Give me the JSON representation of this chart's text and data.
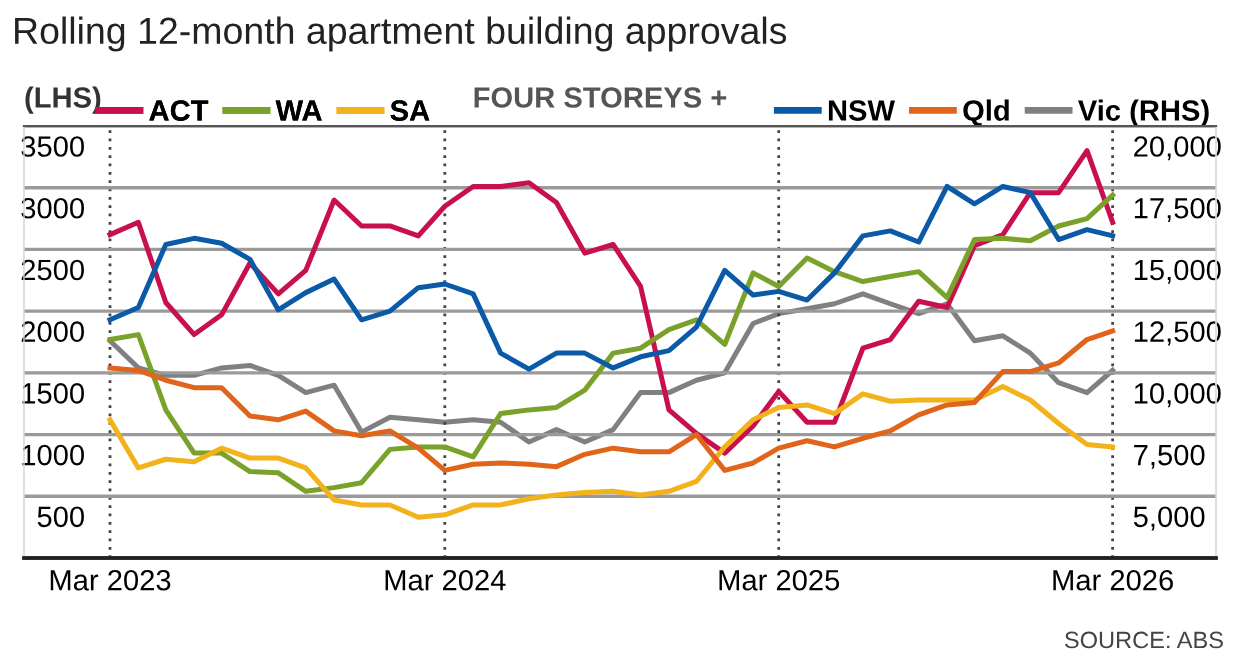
{
  "chart_data": {
    "type": "line",
    "title": "Rolling 12-month apartment building approvals",
    "subtitle": "FOUR STOREYS +",
    "ylabel": "(LHS)",
    "x": [
      "2023-03",
      "2023-04",
      "2023-05",
      "2023-06",
      "2023-07",
      "2023-08",
      "2023-09",
      "2023-10",
      "2023-11",
      "2023-12",
      "2024-01",
      "2024-02",
      "2024-03",
      "2024-04",
      "2024-05",
      "2024-06",
      "2024-07",
      "2024-08",
      "2024-09",
      "2024-10",
      "2024-11",
      "2024-12",
      "2025-01",
      "2025-02",
      "2025-03",
      "2025-04",
      "2025-05",
      "2025-06",
      "2025-07",
      "2025-08",
      "2025-09",
      "2025-10",
      "2025-11",
      "2025-12",
      "2026-01",
      "2026-02",
      "2026-03"
    ],
    "series": [
      {
        "name": "ACT",
        "color": "#c8104e",
        "values": [
          2620,
          2720,
          2070,
          1810,
          1970,
          2390,
          2140,
          2330,
          2900,
          2690,
          2690,
          2610,
          2850,
          3010,
          3010,
          3040,
          2880,
          2470,
          2540,
          2200,
          1200,
          1010,
          850,
          1070,
          1350,
          1100,
          1100,
          1700,
          1770,
          2080,
          2030,
          2530,
          2620,
          2960,
          2960,
          3300,
          2720
        ]
      },
      {
        "name": "WA",
        "color": "#7aa22a",
        "values": [
          1770,
          1810,
          1200,
          850,
          850,
          700,
          690,
          540,
          570,
          610,
          880,
          900,
          900,
          820,
          1170,
          1200,
          1220,
          1360,
          1660,
          1700,
          1850,
          1930,
          1730,
          2310,
          2200,
          2430,
          2320,
          2240,
          2280,
          2320,
          2110,
          2580,
          2590,
          2570,
          2690,
          2750,
          2940
        ]
      },
      {
        "name": "SA",
        "color": "#f2b21c",
        "values": [
          1120,
          730,
          800,
          780,
          890,
          810,
          810,
          730,
          470,
          430,
          430,
          330,
          350,
          430,
          430,
          480,
          510,
          530,
          540,
          510,
          540,
          620,
          900,
          1120,
          1220,
          1240,
          1170,
          1330,
          1270,
          1280,
          1280,
          1280,
          1390,
          1280,
          1090,
          920,
          900
        ]
      },
      {
        "name": "NSW",
        "color": "#0a5aa8",
        "values": [
          1930,
          2030,
          2540,
          2590,
          2550,
          2420,
          2010,
          2150,
          2260,
          1930,
          2000,
          2190,
          2220,
          2140,
          1660,
          1530,
          1660,
          1660,
          1540,
          1630,
          1680,
          1870,
          2330,
          2130,
          2160,
          2090,
          2310,
          2610,
          2650,
          2560,
          3010,
          2870,
          3010,
          2960,
          2580,
          2660,
          2610
        ]
      },
      {
        "name": "Qld",
        "color": "#e0641a",
        "values": [
          1540,
          1520,
          1440,
          1380,
          1380,
          1150,
          1120,
          1190,
          1030,
          990,
          1030,
          890,
          710,
          760,
          770,
          760,
          740,
          840,
          890,
          860,
          860,
          1000,
          710,
          770,
          890,
          950,
          900,
          970,
          1030,
          1160,
          1240,
          1260,
          1510,
          1510,
          1580,
          1770,
          1840
        ]
      },
      {
        "name": "Vic (RHS)",
        "color": "#808080",
        "axis": "y2",
        "values": [
          11300,
          10200,
          9900,
          9900,
          10200,
          10300,
          9900,
          9200,
          9500,
          7600,
          8200,
          8100,
          8000,
          8100,
          8000,
          7200,
          7700,
          7200,
          7700,
          9200,
          9200,
          9700,
          10000,
          12000,
          12400,
          12600,
          12800,
          13200,
          12800,
          12400,
          12800,
          11300,
          11500,
          10800,
          9600,
          9200,
          10100
        ]
      }
    ],
    "xlim": [
      "2022-11-27",
      "2026-06-22"
    ],
    "xticks": [
      {
        "value": "2023-03",
        "label": "Mar 2023"
      },
      {
        "value": "2024-03",
        "label": "Mar 2024"
      },
      {
        "value": "2025-03",
        "label": "Mar 2025"
      },
      {
        "value": "2026-03",
        "label": "Mar 2026"
      }
    ],
    "ylim": [
      0,
      3500
    ],
    "yticks": [
      500,
      1000,
      1500,
      2000,
      2500,
      3000,
      3500
    ],
    "y2lim": [
      2500,
      20000
    ],
    "y2ticks": [
      {
        "value": 5000,
        "label": "5,000"
      },
      {
        "value": 7500,
        "label": "7,500"
      },
      {
        "value": 10000,
        "label": "10,000"
      },
      {
        "value": 12500,
        "label": "12,500"
      },
      {
        "value": 15000,
        "label": "15,000"
      },
      {
        "value": 17500,
        "label": "17,500"
      },
      {
        "value": 20000,
        "label": "20,000"
      }
    ],
    "grid": true,
    "legend": "top",
    "line_style": "solid",
    "annotations": [
      "SOURCE: ABS"
    ]
  }
}
